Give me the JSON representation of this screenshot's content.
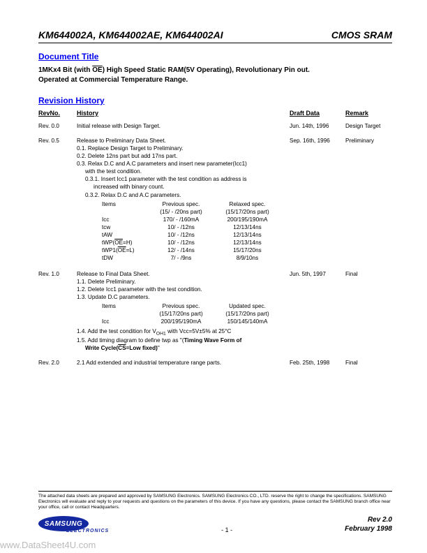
{
  "header": {
    "part_numbers": "KM644002A, KM644002AE, KM644002AI",
    "product_type": "CMOS SRAM"
  },
  "doc_title_section": {
    "heading": "Document Title",
    "line1_prefix": "1MKx4 Bit (with ",
    "line1_oe": "OE",
    "line1_suffix": ") High Speed Static RAM(5V Operating), Revolutionary Pin out.",
    "line2": "Operated at Commercial Temperature Range."
  },
  "revision_section": {
    "heading": "Revision History",
    "headers": {
      "revno": "RevNo.",
      "history": "History",
      "draft": "Draft Data",
      "remark": "Remark"
    }
  },
  "revisions": [
    {
      "revno": "Rev. 0.0",
      "draft": "Jun. 14th, 1996",
      "remark": "Design Target",
      "body": [
        "Initial release with Design Target."
      ]
    },
    {
      "revno": "Rev. 0.5",
      "draft": "Sep. 16th, 1996",
      "remark": "Preliminary",
      "body": [
        "Release to Preliminary Data Sheet.",
        "0.1. Replace Design Target to Preliminary.",
        "0.2. Delete 12ns part but add 17ns part.",
        "0.3. Relax D.C and A.C parameters and insert new parameter(Icc1)",
        "      with the test condition.",
        "  0.3.1. Insert Icc1 parameter with the test condition as address is",
        "         increased with binary count.",
        "  0.3.2. Relax D.C and A.C parameters."
      ],
      "table": {
        "header": [
          "Items",
          "Previous spec.\n(15/ - /20ns part)",
          "Relaxed spec.\n(15/17/20ns part)"
        ],
        "rows": [
          [
            "Icc",
            "170/ - /160mA",
            "200/195/190mA"
          ],
          [
            "tcw",
            "10/ - /12ns",
            "12/13/14ns"
          ],
          [
            "tAW",
            "10/ - /12ns",
            "12/13/14ns"
          ],
          [
            "tWP(__OE__=H)",
            "10/ - /12ns",
            "12/13/14ns"
          ],
          [
            "tWP1(__OE__=L)",
            "12/ - /14ns",
            "15/17/20ns"
          ],
          [
            "tDW",
            "7/ - /9ns",
            "8/9/10ns"
          ]
        ]
      }
    },
    {
      "revno": "Rev. 1.0",
      "draft": "Jun. 5th, 1997",
      "remark": "Final",
      "body": [
        "Release to Final Data Sheet.",
        "1.1. Delete Preliminary.",
        "1.2. Delete Icc1 parameter with the test condition.",
        "1.3. Update D.C parameters."
      ],
      "table": {
        "header": [
          "Items",
          "Previous spec.\n(15/17/20ns part)",
          "Updated spec.\n(15/17/20ns part)"
        ],
        "rows": [
          [
            "Icc",
            "200/195/190mA",
            "150/145/140mA"
          ]
        ]
      },
      "body2_pre": "1.4. Add the test condition for V",
      "body2_sub": "OH1",
      "body2_mid": " with Vcc=5V±5% at 25°C",
      "body3_pre": "1.5. Add timing diagram to define twp as \"(",
      "body3_bold": "Timing Wave Form of",
      "body4_bold_pre": "Write Cycle(",
      "body4_cs": "CS",
      "body4_bold_post": "=Low fixed)",
      "body4_close": "\""
    },
    {
      "revno": "Rev. 2.0",
      "draft": "Feb. 25th, 1998",
      "remark": "Final",
      "body": [
        "2.1 Add extended and industrial temperature range parts."
      ]
    }
  ],
  "footer": {
    "disclaimer": "The attached data sheets are prepared and approved by SAMSUNG Electronics. SAMSUNG Electronics CO., LTD. reserve the right to change the specifications. SAMSUNG Electronics will evaluate and reply to your requests and questions on the parameters of this device. If you have any questions, please contact the SAMSUNG branch office near your  office, call or contact Headquarters.",
    "logo_text": "SAMSUNG",
    "electronics": "ELECTRONICS",
    "page_num": "- 1 -",
    "rev_line1": "Rev 2.0",
    "rev_line2": "February 1998"
  },
  "watermark": "www.DataSheet4U.com"
}
